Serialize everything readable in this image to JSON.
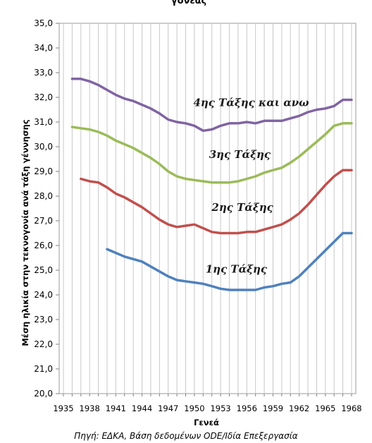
{
  "chart_data": {
    "type": "line",
    "title": "γονέας",
    "xlabel": "Γενεά",
    "ylabel": "Μέση ηλικία στην τεκνογονία ανά τάξη γέννησης",
    "source": "Πηγή: ΕΔΚΑ, Βάση δεδομένων ODE/Ιδία Επεξεργασία",
    "xlim": [
      1935,
      1968
    ],
    "ylim": [
      20.0,
      35.0
    ],
    "y_ticks": [
      "20,0",
      "21,0",
      "22,0",
      "23,0",
      "24,0",
      "25,0",
      "26,0",
      "27,0",
      "28,0",
      "29,0",
      "30,0",
      "31,0",
      "32,0",
      "33,0",
      "34,0",
      "35,0"
    ],
    "x_ticks": [
      "1935",
      "1938",
      "1941",
      "1944",
      "1947",
      "1950",
      "1953",
      "1956",
      "1959",
      "1962",
      "1965",
      "1968"
    ],
    "grid": "vertical",
    "legend": "none (inline labels)",
    "series": [
      {
        "name": "4ης Τάξης και ανω",
        "color": "#8064a2",
        "x": [
          1936,
          1937,
          1938,
          1939,
          1940,
          1941,
          1942,
          1943,
          1944,
          1945,
          1946,
          1947,
          1948,
          1949,
          1950,
          1951,
          1952,
          1953,
          1954,
          1955,
          1956,
          1957,
          1958,
          1959,
          1960,
          1961,
          1962,
          1963,
          1964,
          1965,
          1966,
          1967,
          1968
        ],
        "y": [
          32.75,
          32.75,
          32.65,
          32.5,
          32.3,
          32.1,
          31.95,
          31.85,
          31.7,
          31.55,
          31.35,
          31.1,
          31.0,
          30.95,
          30.85,
          30.65,
          30.7,
          30.85,
          30.95,
          30.95,
          31.0,
          30.95,
          31.05,
          31.05,
          31.05,
          31.15,
          31.25,
          31.4,
          31.5,
          31.55,
          31.65,
          31.9,
          31.9
        ]
      },
      {
        "name": "3ης Τάξης",
        "color": "#9bbb59",
        "x": [
          1936,
          1937,
          1938,
          1939,
          1940,
          1941,
          1942,
          1943,
          1944,
          1945,
          1946,
          1947,
          1948,
          1949,
          1950,
          1951,
          1952,
          1953,
          1954,
          1955,
          1956,
          1957,
          1958,
          1959,
          1960,
          1961,
          1962,
          1963,
          1964,
          1965,
          1966,
          1967,
          1968
        ],
        "y": [
          30.8,
          30.75,
          30.7,
          30.6,
          30.45,
          30.25,
          30.1,
          29.95,
          29.75,
          29.55,
          29.3,
          29.0,
          28.8,
          28.7,
          28.65,
          28.6,
          28.55,
          28.55,
          28.55,
          28.6,
          28.7,
          28.8,
          28.95,
          29.05,
          29.15,
          29.35,
          29.6,
          29.9,
          30.2,
          30.5,
          30.85,
          30.95,
          30.95
        ]
      },
      {
        "name": "2ης Τάξης",
        "color": "#c0504d",
        "x": [
          1937,
          1938,
          1939,
          1940,
          1941,
          1942,
          1943,
          1944,
          1945,
          1946,
          1947,
          1948,
          1949,
          1950,
          1951,
          1952,
          1953,
          1954,
          1955,
          1956,
          1957,
          1958,
          1959,
          1960,
          1961,
          1962,
          1963,
          1964,
          1965,
          1966,
          1967,
          1968
        ],
        "y": [
          28.7,
          28.6,
          28.55,
          28.35,
          28.1,
          27.95,
          27.75,
          27.55,
          27.3,
          27.05,
          26.85,
          26.75,
          26.8,
          26.85,
          26.7,
          26.55,
          26.5,
          26.5,
          26.5,
          26.55,
          26.55,
          26.65,
          26.75,
          26.85,
          27.05,
          27.3,
          27.65,
          28.05,
          28.45,
          28.8,
          29.05,
          29.05
        ]
      },
      {
        "name": "1ης Τάξης",
        "color": "#4f81bd",
        "x": [
          1940,
          1941,
          1942,
          1943,
          1944,
          1945,
          1946,
          1947,
          1948,
          1949,
          1950,
          1951,
          1952,
          1953,
          1954,
          1955,
          1956,
          1957,
          1958,
          1959,
          1960,
          1961,
          1962,
          1963,
          1964,
          1965,
          1966,
          1967,
          1968
        ],
        "y": [
          25.85,
          25.7,
          25.55,
          25.45,
          25.35,
          25.15,
          24.95,
          24.75,
          24.6,
          24.55,
          24.5,
          24.45,
          24.35,
          24.25,
          24.2,
          24.2,
          24.2,
          24.2,
          24.3,
          24.35,
          24.45,
          24.5,
          24.75,
          25.1,
          25.45,
          25.8,
          26.15,
          26.5,
          26.5
        ]
      }
    ]
  }
}
